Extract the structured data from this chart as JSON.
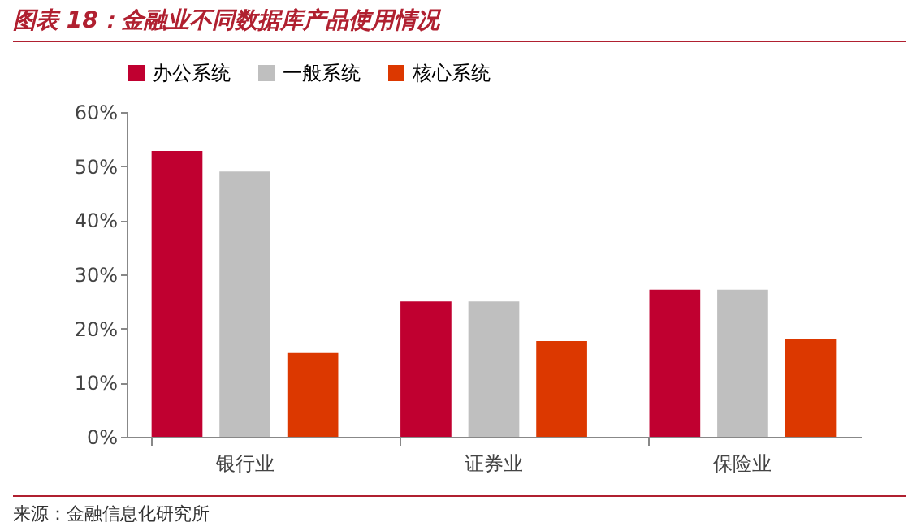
{
  "chart_data": {
    "type": "bar",
    "title": "图表 18：金融业不同数据库产品使用情况",
    "categories": [
      "银行业",
      "证券业",
      "保险业"
    ],
    "series": [
      {
        "name": "办公系统",
        "color": "#c00030",
        "values": [
          52.8,
          25,
          27.2
        ]
      },
      {
        "name": "一般系统",
        "color": "#bfbfbf",
        "values": [
          49,
          25,
          27.2
        ]
      },
      {
        "name": "核心系统",
        "color": "#dc3800",
        "values": [
          15.5,
          17.7,
          18
        ]
      }
    ],
    "ylim": [
      0,
      60
    ],
    "yticks": [
      {
        "value": 0,
        "label": "0%"
      },
      {
        "value": 10,
        "label": "10%"
      },
      {
        "value": 20,
        "label": "20%"
      },
      {
        "value": 30,
        "label": "30%"
      },
      {
        "value": 40,
        "label": "40%"
      },
      {
        "value": 50,
        "label": "50%"
      },
      {
        "value": 60,
        "label": "60%"
      }
    ],
    "legend": "top",
    "grid": false,
    "annotations": [
      "来源：金融信息化研究所"
    ]
  }
}
